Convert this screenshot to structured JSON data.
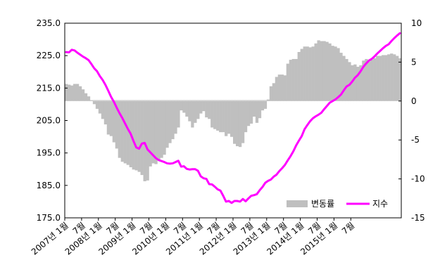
{
  "chart_data": {
    "type": "bar+line",
    "title": "",
    "x_tick_labels": [
      "2007년 1월",
      "7월",
      "2008년 1월",
      "7월",
      "2009년 1월",
      "7월",
      "2010년 1월",
      "7월",
      "2011년 1월",
      "7월",
      "2012년 1월",
      "7월",
      "2013년 1월",
      "7월",
      "2014년 1월",
      "7월",
      "2015년 1월",
      "7월"
    ],
    "left_axis": {
      "ylim": [
        175.0,
        235.0
      ],
      "ticks": [
        "175.0",
        "185.0",
        "195.0",
        "205.0",
        "215.0",
        "225.0",
        "235.0"
      ]
    },
    "right_axis": {
      "ylim": [
        -15,
        10
      ],
      "ticks": [
        "-15",
        "-10",
        "-5",
        "0",
        "5",
        "10"
      ]
    },
    "grid": false,
    "legend_position": "bottom-right",
    "colors": {
      "bar": "#bfbfbf",
      "line": "#ff00ff"
    },
    "series": [
      {
        "name": "변동률",
        "kind": "bar",
        "axis": "right",
        "values": [
          2.2,
          2.1,
          2.0,
          2.2,
          2.2,
          1.9,
          1.5,
          1.0,
          0.6,
          0.1,
          -0.4,
          -1.0,
          -1.6,
          -2.3,
          -3.0,
          -4.3,
          -4.5,
          -5.3,
          -6.1,
          -7.3,
          -7.8,
          -8.0,
          -8.2,
          -8.5,
          -8.8,
          -8.9,
          -9.1,
          -9.5,
          -10.3,
          -10.2,
          -8.4,
          -8.0,
          -8.1,
          -7.6,
          -7.3,
          -6.9,
          -6.0,
          -5.4,
          -4.9,
          -4.2,
          -3.4,
          -1.2,
          -1.5,
          -2.0,
          -2.6,
          -3.4,
          -2.8,
          -2.3,
          -1.6,
          -1.3,
          -2.1,
          -2.3,
          -3.4,
          -3.6,
          -3.8,
          -4.0,
          -4.0,
          -4.5,
          -4.2,
          -4.6,
          -5.5,
          -5.8,
          -5.9,
          -5.4,
          -4.0,
          -3.2,
          -2.9,
          -2.0,
          -2.8,
          -2.2,
          -1.2,
          -1.0,
          0.2,
          1.9,
          2.3,
          3.1,
          3.4,
          3.4,
          3.3,
          4.8,
          5.3,
          5.4,
          5.4,
          6.3,
          6.7,
          7.0,
          7.0,
          6.9,
          7.0,
          7.4,
          7.8,
          7.7,
          7.7,
          7.6,
          7.4,
          7.1,
          7.0,
          6.8,
          6.2,
          5.8,
          5.4,
          5.0,
          4.6,
          4.7,
          4.4,
          4.6,
          5.2,
          5.4,
          5.1,
          5.3,
          5.5,
          5.8,
          5.8,
          5.9,
          5.9,
          6.0,
          6.1,
          6.0,
          5.8,
          5.5
        ]
      },
      {
        "name": "지수",
        "kind": "line",
        "axis": "left",
        "values": [
          226.1,
          226.0,
          226.8,
          226.6,
          225.9,
          225.3,
          224.7,
          224.2,
          223.6,
          222.4,
          221.1,
          220.2,
          218.7,
          217.5,
          216.0,
          214.2,
          212.3,
          210.8,
          209.0,
          207.3,
          205.8,
          204.1,
          202.4,
          200.9,
          198.7,
          196.7,
          196.3,
          197.9,
          198.1,
          196.1,
          195.2,
          194.3,
          193.4,
          192.8,
          192.5,
          192.2,
          191.8,
          191.7,
          191.8,
          192.2,
          192.6,
          190.8,
          190.9,
          190.1,
          189.9,
          190.0,
          190.0,
          189.5,
          187.8,
          187.2,
          187.0,
          185.4,
          185.3,
          184.6,
          183.8,
          183.4,
          181.8,
          180.0,
          180.2,
          179.6,
          180.2,
          180.2,
          180.0,
          180.8,
          180.1,
          181.0,
          181.8,
          182.0,
          182.3,
          183.5,
          184.5,
          185.8,
          186.4,
          186.8,
          187.7,
          188.3,
          189.4,
          190.3,
          191.3,
          192.7,
          194.0,
          195.5,
          197.3,
          198.8,
          200.2,
          202.3,
          203.6,
          204.8,
          205.7,
          206.3,
          206.8,
          207.4,
          208.5,
          209.5,
          210.5,
          211.0,
          211.5,
          212.2,
          213.0,
          214.3,
          215.5,
          216.0,
          217.0,
          218.2,
          219.0,
          220.2,
          221.6,
          222.6,
          223.5,
          224.0,
          224.8,
          225.7,
          226.5,
          227.3,
          228.0,
          228.5,
          229.5,
          230.4,
          231.2,
          231.9
        ]
      }
    ]
  }
}
